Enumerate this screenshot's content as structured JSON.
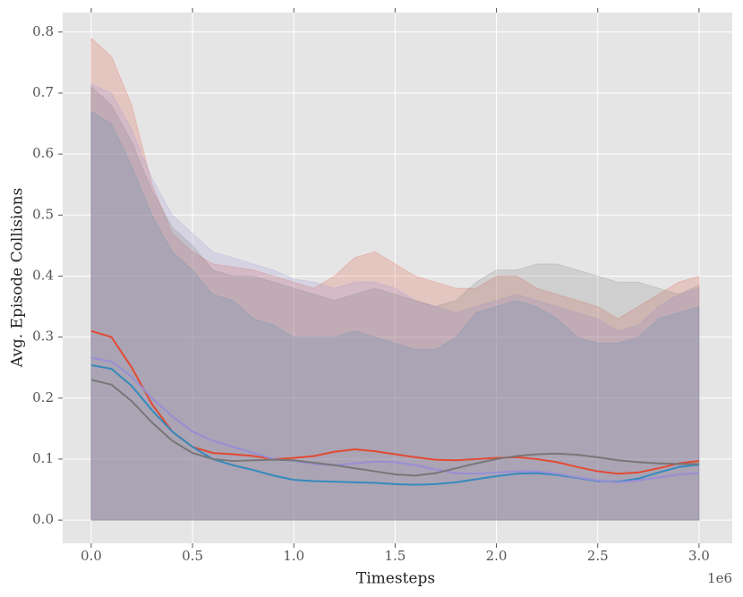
{
  "chart_data": {
    "type": "line",
    "xlabel": "Timesteps",
    "ylabel": "Avg. Episode Collisions",
    "x_offset_label": "1e6",
    "x": [
      0,
      0.1,
      0.2,
      0.3,
      0.4,
      0.5,
      0.6,
      0.7,
      0.8,
      0.9,
      1.0,
      1.1,
      1.2,
      1.3,
      1.4,
      1.5,
      1.6,
      1.7,
      1.8,
      1.9,
      2.0,
      2.1,
      2.2,
      2.3,
      2.4,
      2.5,
      2.6,
      2.7,
      2.8,
      2.9,
      3.0
    ],
    "series": [
      {
        "color": "#E24A33",
        "values": [
          0.31,
          0.3,
          0.25,
          0.19,
          0.145,
          0.12,
          0.11,
          0.108,
          0.105,
          0.1,
          0.102,
          0.105,
          0.112,
          0.116,
          0.113,
          0.108,
          0.103,
          0.099,
          0.098,
          0.1,
          0.102,
          0.103,
          0.1,
          0.095,
          0.087,
          0.08,
          0.076,
          0.078,
          0.085,
          0.093,
          0.097
        ],
        "upper": [
          0.79,
          0.76,
          0.68,
          0.55,
          0.47,
          0.44,
          0.42,
          0.415,
          0.41,
          0.4,
          0.39,
          0.38,
          0.4,
          0.43,
          0.44,
          0.42,
          0.4,
          0.39,
          0.38,
          0.38,
          0.4,
          0.4,
          0.38,
          0.37,
          0.36,
          0.35,
          0.33,
          0.35,
          0.37,
          0.39,
          0.4
        ]
      },
      {
        "color": "#348ABD",
        "values": [
          0.254,
          0.248,
          0.22,
          0.18,
          0.145,
          0.12,
          0.1,
          0.09,
          0.082,
          0.073,
          0.066,
          0.064,
          0.063,
          0.062,
          0.061,
          0.059,
          0.058,
          0.059,
          0.062,
          0.067,
          0.072,
          0.076,
          0.077,
          0.074,
          0.069,
          0.064,
          0.063,
          0.068,
          0.078,
          0.087,
          0.091
        ],
        "upper": [
          0.67,
          0.65,
          0.58,
          0.5,
          0.44,
          0.41,
          0.37,
          0.36,
          0.33,
          0.32,
          0.3,
          0.3,
          0.3,
          0.31,
          0.3,
          0.29,
          0.28,
          0.28,
          0.3,
          0.34,
          0.35,
          0.36,
          0.35,
          0.33,
          0.3,
          0.29,
          0.29,
          0.3,
          0.33,
          0.34,
          0.35
        ]
      },
      {
        "color": "#988ED5",
        "values": [
          0.266,
          0.26,
          0.235,
          0.2,
          0.17,
          0.145,
          0.13,
          0.12,
          0.11,
          0.1,
          0.097,
          0.092,
          0.09,
          0.093,
          0.096,
          0.095,
          0.09,
          0.083,
          0.077,
          0.076,
          0.078,
          0.08,
          0.08,
          0.076,
          0.07,
          0.065,
          0.062,
          0.065,
          0.07,
          0.075,
          0.077
        ],
        "upper": [
          0.715,
          0.7,
          0.64,
          0.56,
          0.5,
          0.47,
          0.44,
          0.43,
          0.42,
          0.41,
          0.395,
          0.39,
          0.38,
          0.39,
          0.39,
          0.38,
          0.36,
          0.35,
          0.34,
          0.35,
          0.36,
          0.37,
          0.36,
          0.35,
          0.34,
          0.33,
          0.31,
          0.32,
          0.35,
          0.37,
          0.38
        ]
      },
      {
        "color": "#777777",
        "values": [
          0.23,
          0.222,
          0.195,
          0.16,
          0.13,
          0.11,
          0.1,
          0.097,
          0.098,
          0.099,
          0.098,
          0.094,
          0.09,
          0.085,
          0.08,
          0.075,
          0.073,
          0.077,
          0.085,
          0.093,
          0.1,
          0.105,
          0.108,
          0.109,
          0.107,
          0.103,
          0.098,
          0.095,
          0.093,
          0.092,
          0.092
        ],
        "upper": [
          0.71,
          0.68,
          0.62,
          0.54,
          0.48,
          0.45,
          0.41,
          0.4,
          0.4,
          0.39,
          0.38,
          0.37,
          0.36,
          0.37,
          0.38,
          0.37,
          0.36,
          0.35,
          0.36,
          0.39,
          0.41,
          0.41,
          0.42,
          0.42,
          0.41,
          0.4,
          0.39,
          0.39,
          0.38,
          0.37,
          0.385
        ]
      }
    ],
    "xlim": [
      -0.141,
      3.164
    ],
    "ylim": [
      -0.038,
      0.832
    ],
    "xticks": [
      {
        "value": 0,
        "label": "0.0"
      },
      {
        "value": 0.5,
        "label": "0.5"
      },
      {
        "value": 1,
        "label": "1.0"
      },
      {
        "value": 1.5,
        "label": "1.5"
      },
      {
        "value": 2,
        "label": "2.0"
      },
      {
        "value": 2.5,
        "label": "2.5"
      },
      {
        "value": 3,
        "label": "3.0"
      }
    ],
    "yticks": [
      {
        "value": 0,
        "label": "0.0"
      },
      {
        "value": 0.1,
        "label": "0.1"
      },
      {
        "value": 0.2,
        "label": "0.2"
      },
      {
        "value": 0.3,
        "label": "0.3"
      },
      {
        "value": 0.4,
        "label": "0.4"
      },
      {
        "value": 0.5,
        "label": "0.5"
      },
      {
        "value": 0.6,
        "label": "0.6"
      },
      {
        "value": 0.7,
        "label": "0.7"
      },
      {
        "value": 0.8,
        "label": "0.8"
      }
    ],
    "grid": true,
    "band_opacity": 0.2
  }
}
